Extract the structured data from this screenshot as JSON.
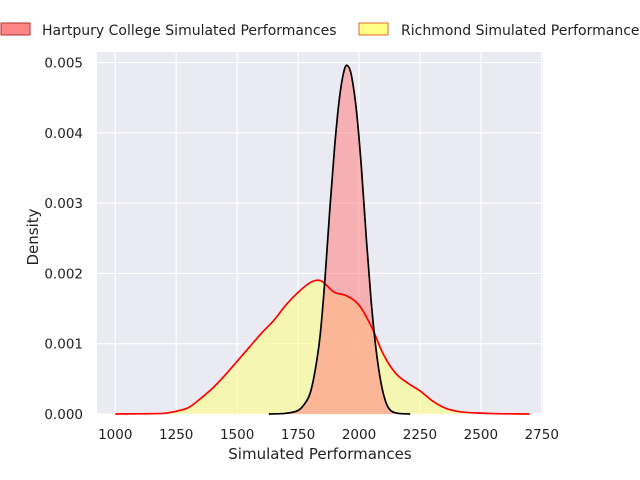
{
  "chart_data": {
    "type": "area",
    "title": "",
    "xlabel": "Simulated Performances",
    "ylabel": "Density",
    "xlim": [
      925,
      2755
    ],
    "ylim": [
      0,
      0.00515
    ],
    "x_ticks": [
      1000,
      1250,
      1500,
      1750,
      2000,
      2250,
      2500,
      2750
    ],
    "y_ticks": [
      0.0,
      0.001,
      0.002,
      0.003,
      0.004,
      0.005
    ],
    "x_tick_labels": [
      "1000",
      "1250",
      "1500",
      "1750",
      "2000",
      "2250",
      "2500",
      "2750"
    ],
    "y_tick_labels": [
      "0.000",
      "0.001",
      "0.002",
      "0.003",
      "0.004",
      "0.005"
    ],
    "grid": true,
    "legend_placement": "top (above plot, 2 columns)",
    "series": [
      {
        "name": "Hartpury College Simulated Performances",
        "fill_color": "#ff8080",
        "line_color": "#000000",
        "points": [
          [
            1630,
            0
          ],
          [
            1700,
            1e-05
          ],
          [
            1750,
            5e-05
          ],
          [
            1780,
            0.00016
          ],
          [
            1800,
            0.0003
          ],
          [
            1820,
            0.00062
          ],
          [
            1840,
            0.0011
          ],
          [
            1860,
            0.0019
          ],
          [
            1880,
            0.0029
          ],
          [
            1900,
            0.0038
          ],
          [
            1920,
            0.0045
          ],
          [
            1940,
            0.0049
          ],
          [
            1955,
            0.00495
          ],
          [
            1970,
            0.0048
          ],
          [
            1990,
            0.0043
          ],
          [
            2010,
            0.0035
          ],
          [
            2030,
            0.0025
          ],
          [
            2050,
            0.0016
          ],
          [
            2070,
            0.00092
          ],
          [
            2090,
            0.00045
          ],
          [
            2110,
            0.00017
          ],
          [
            2130,
            5e-05
          ],
          [
            2160,
            1e-05
          ],
          [
            2210,
            0
          ]
        ]
      },
      {
        "name": "Richmond Simulated Performances",
        "fill_color": "#ffff80",
        "line_color": "#ff0000",
        "points": [
          [
            1000,
            0
          ],
          [
            1100,
            3e-06
          ],
          [
            1200,
            1e-05
          ],
          [
            1250,
            4e-05
          ],
          [
            1300,
            9e-05
          ],
          [
            1350,
            0.00022
          ],
          [
            1400,
            0.00037
          ],
          [
            1450,
            0.00055
          ],
          [
            1500,
            0.00075
          ],
          [
            1550,
            0.00095
          ],
          [
            1600,
            0.00115
          ],
          [
            1650,
            0.00133
          ],
          [
            1700,
            0.00155
          ],
          [
            1750,
            0.00173
          ],
          [
            1800,
            0.00187
          ],
          [
            1840,
            0.0019
          ],
          [
            1870,
            0.00182
          ],
          [
            1900,
            0.00173
          ],
          [
            1950,
            0.00168
          ],
          [
            2000,
            0.00155
          ],
          [
            2050,
            0.00125
          ],
          [
            2100,
            0.00085
          ],
          [
            2150,
            0.00058
          ],
          [
            2200,
            0.00044
          ],
          [
            2250,
            0.00033
          ],
          [
            2300,
            0.00019
          ],
          [
            2350,
            9e-05
          ],
          [
            2400,
            4e-05
          ],
          [
            2450,
            2e-05
          ],
          [
            2500,
            1.2e-05
          ],
          [
            2550,
            6e-06
          ],
          [
            2600,
            3e-06
          ],
          [
            2700,
            0
          ]
        ]
      }
    ],
    "colors": {
      "background": "#eaeaf2",
      "grid": "#ffffff",
      "overlap_fill": "#f3b485"
    }
  }
}
